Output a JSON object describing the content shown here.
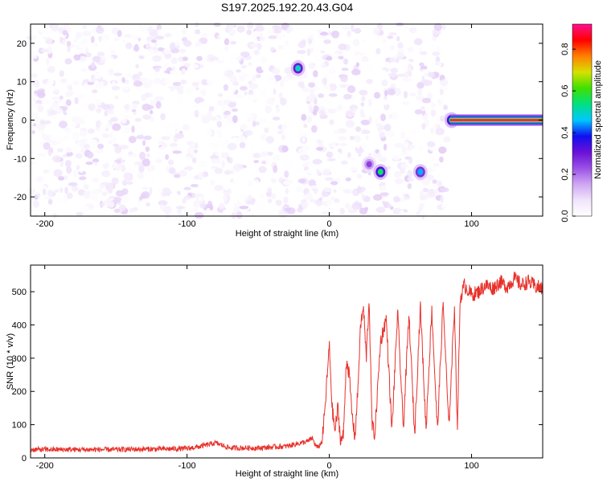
{
  "title": "S197.2025.192.20.43.G04",
  "colors": {
    "snr_line": "#e8302a",
    "axes": "#000000",
    "colorscale": [
      "#ffffff",
      "#f0e4fb",
      "#cfa6f2",
      "#9a50e6",
      "#6a10d8",
      "#1010f0",
      "#00c8ff",
      "#00e080",
      "#40e000",
      "#d8e000",
      "#ff8000",
      "#ff0000",
      "#ff1090"
    ]
  },
  "chart_data": [
    {
      "type": "heatmap",
      "name": "spectrogram",
      "xlabel": "Height of straight line (km)",
      "ylabel": "Frequency (Hz)",
      "xlim": [
        -210,
        150
      ],
      "ylim": [
        -25,
        25
      ],
      "xticks": [
        -200,
        -100,
        0,
        100
      ],
      "yticks": [
        -20,
        -10,
        0,
        10,
        20
      ],
      "grid": false,
      "colorbar": {
        "label": "Normalized spectral amplitude",
        "range": [
          0,
          0.92
        ],
        "ticks": [
          0.0,
          0.2,
          0.4,
          0.6,
          0.8
        ]
      },
      "noise_region_x": [
        -210,
        84
      ],
      "gaps_x": [
        [
          -27,
          -22
        ],
        [
          29,
          33
        ],
        [
          59,
          62
        ],
        [
          83,
          150
        ]
      ],
      "hotspots": [
        {
          "x": -22,
          "y": 13.5,
          "value": 0.45
        },
        {
          "x": 28,
          "y": -11.5,
          "value": 0.2
        },
        {
          "x": 36,
          "y": -13.5,
          "value": 0.5
        },
        {
          "x": 64,
          "y": -13.5,
          "value": 0.4
        },
        {
          "x": 86,
          "y": 0,
          "value": 0.5
        }
      ],
      "signal_line": {
        "x": [
          85,
          150
        ],
        "y": 0,
        "value": 0.92
      }
    },
    {
      "type": "line",
      "name": "snr",
      "xlabel": "Height of straight line (km)",
      "ylabel": "SNR (10 * v/v)",
      "xlim": [
        -210,
        150
      ],
      "ylim": [
        0,
        580
      ],
      "xticks": [
        -200,
        -100,
        0,
        100
      ],
      "yticks": [
        0,
        100,
        200,
        300,
        400,
        500
      ],
      "grid": false,
      "x": [
        -210,
        -150,
        -100,
        -90,
        -80,
        -70,
        -50,
        -30,
        -15,
        -12,
        -10,
        -8,
        -5,
        -3,
        0,
        2,
        4,
        6,
        8,
        10,
        12,
        14,
        16,
        18,
        20,
        22,
        24,
        26,
        28,
        30,
        32,
        36,
        40,
        44,
        48,
        52,
        56,
        60,
        64,
        68,
        72,
        76,
        80,
        84,
        88,
        90,
        92,
        95,
        100,
        105,
        110,
        115,
        120,
        125,
        130,
        135,
        140,
        145,
        150
      ],
      "y": [
        25,
        25,
        28,
        35,
        45,
        30,
        30,
        35,
        50,
        60,
        40,
        30,
        50,
        150,
        340,
        150,
        80,
        150,
        50,
        70,
        300,
        250,
        130,
        60,
        200,
        400,
        450,
        300,
        480,
        100,
        70,
        350,
        420,
        80,
        440,
        90,
        430,
        70,
        460,
        85,
        450,
        80,
        470,
        90,
        460,
        80,
        480,
        520,
        490,
        500,
        520,
        510,
        530,
        515,
        540,
        520,
        530,
        515,
        510
      ]
    }
  ]
}
